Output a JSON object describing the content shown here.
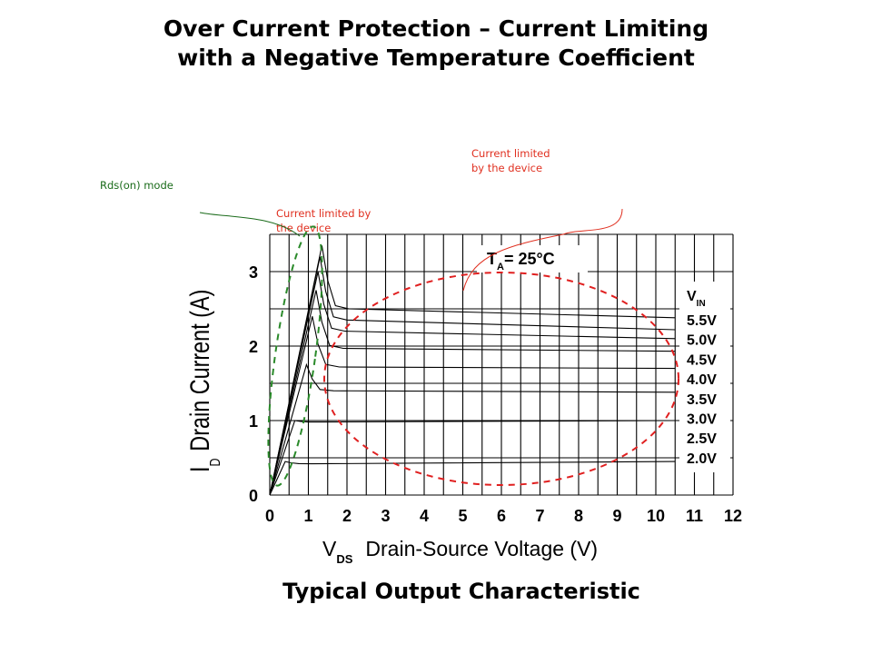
{
  "title_line1": "Over Current Protection – Current Limiting",
  "title_line2": "with a Negative Temperature Coefficient",
  "annotations": {
    "rds_on_mode": "Rds(on) mode",
    "current_limited_left_line1": "Current limited by",
    "current_limited_left_line2": "the device",
    "current_limited_right_line1": "Current limited",
    "current_limited_right_line2": "by the device"
  },
  "colors": {
    "annotation_red": "#e03020",
    "annotation_green": "#1a6b1a",
    "ellipse_red": "#e02020",
    "dashed_green": "#2a8a2a"
  },
  "chart_data": {
    "type": "line",
    "title": "Typical Output Characteristic",
    "xlabel_main": "V",
    "xlabel_sub": "DS",
    "xlabel_rest": "Drain-Source Voltage (V)",
    "ylabel_main": "I",
    "ylabel_sub": "D",
    "ylabel_rest": "Drain Current (A)",
    "xlim": [
      0,
      12
    ],
    "ylim": [
      0,
      3.5
    ],
    "x_ticks": [
      "0",
      "1",
      "2",
      "3",
      "4",
      "5",
      "6",
      "7",
      "8",
      "9",
      "10",
      "11",
      "12"
    ],
    "y_ticks": [
      "0",
      "1",
      "2",
      "3"
    ],
    "temp_label_main": "T",
    "temp_label_sub": "A",
    "temp_label_rest": "= 25°C",
    "legend_title_main": "V",
    "legend_title_sub": "IN",
    "grid": true,
    "series": [
      {
        "name": "5.5V",
        "peak": [
          1.35,
          3.35
        ],
        "settle": 2.5,
        "end": 2.38
      },
      {
        "name": "5.0V",
        "peak": [
          1.3,
          3.2
        ],
        "settle": 2.35,
        "end": 2.22
      },
      {
        "name": "4.5V",
        "peak": [
          1.25,
          3.0
        ],
        "settle": 2.2,
        "end": 2.1
      },
      {
        "name": "4.0V",
        "peak": [
          1.2,
          2.75
        ],
        "settle": 1.97,
        "end": 1.93
      },
      {
        "name": "3.5V",
        "peak": [
          1.1,
          2.4
        ],
        "settle": 1.72,
        "end": 1.7
      },
      {
        "name": "3.0V",
        "peak": [
          0.95,
          1.75
        ],
        "settle": 1.4,
        "end": 1.38
      },
      {
        "name": "2.5V",
        "peak": [
          0.65,
          1.0
        ],
        "settle": 0.98,
        "end": 1.0
      },
      {
        "name": "2.0V",
        "peak": [
          0.4,
          0.45
        ],
        "settle": 0.42,
        "end": 0.45
      }
    ]
  }
}
